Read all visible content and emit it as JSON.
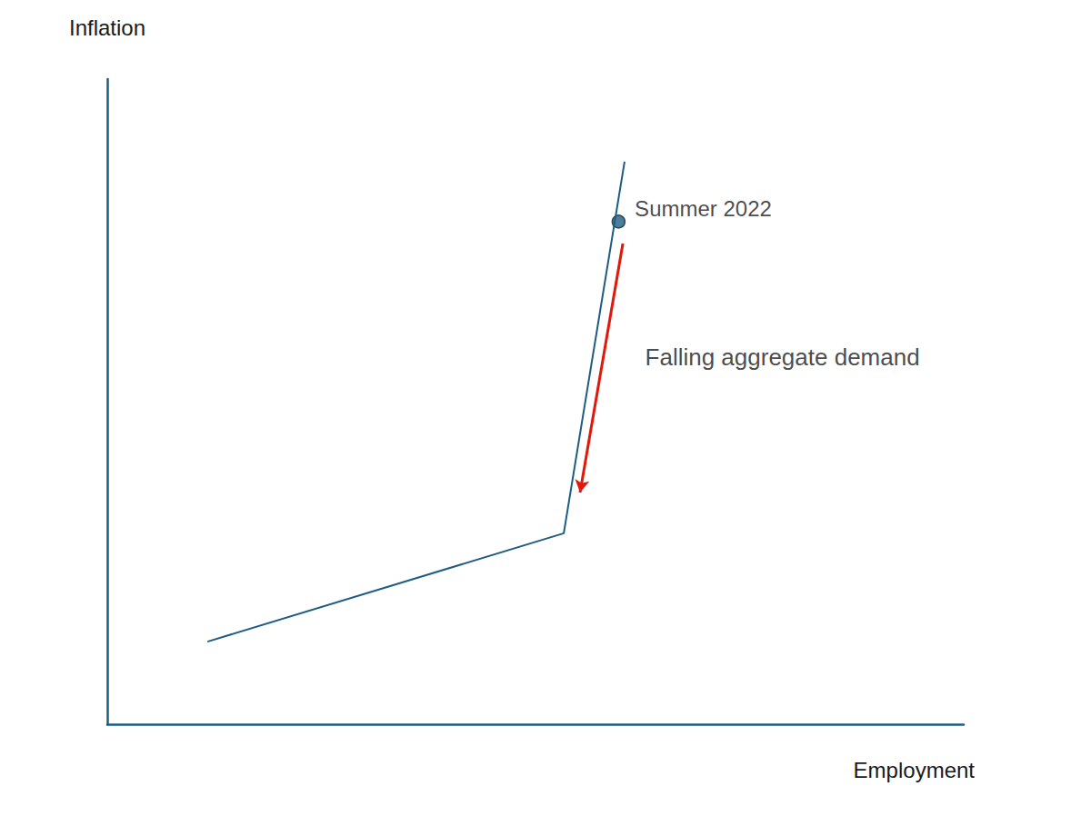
{
  "chart_data": {
    "type": "line",
    "x_label": "Employment",
    "y_label": "Inflation",
    "x": [
      11.7,
      53.3,
      60.4
    ],
    "values": [
      12.8,
      29.6,
      87.2
    ],
    "color": "#1f5c82",
    "xlim": [
      0,
      100
    ],
    "ylim": [
      0,
      100
    ],
    "grid": false,
    "tick_labels": false,
    "points": [
      {
        "text": "Summer 2022",
        "x": 59.7,
        "y": 77.9,
        "marker": "circle",
        "color": "#1f5c82"
      }
    ],
    "arrows": [
      {
        "text": "Falling aggregate demand",
        "x": [
          60.2,
          55.2
        ],
        "y": [
          74.5,
          35.9
        ],
        "color": "#e3170a"
      }
    ]
  }
}
